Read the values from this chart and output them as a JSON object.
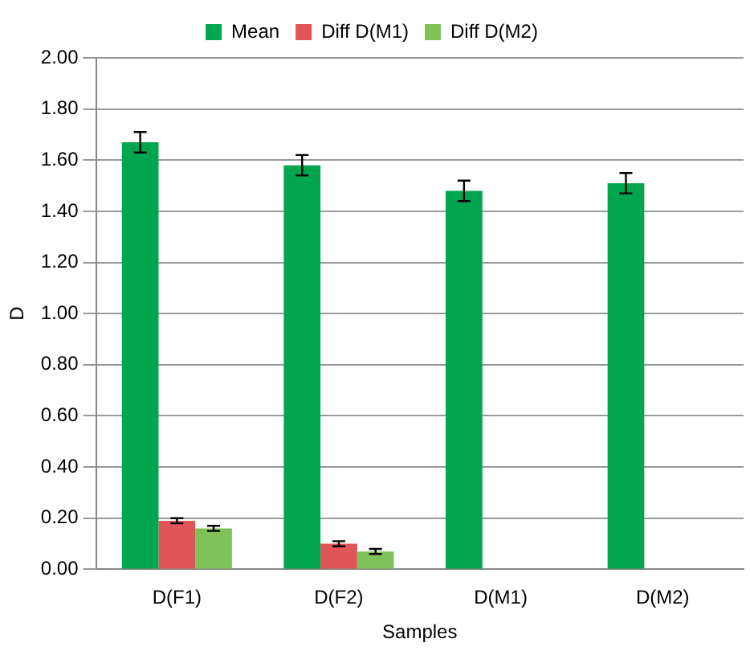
{
  "chart_data": {
    "type": "bar",
    "xlabel": "Samples",
    "ylabel": "D",
    "categories": [
      "D(F1)",
      "D(F2)",
      "D(M1)",
      "D(M2)"
    ],
    "series": [
      {
        "name": "Mean",
        "color": "#00a64f",
        "values": [
          1.67,
          1.58,
          1.48,
          1.51
        ],
        "errors": [
          0.04,
          0.04,
          0.04,
          0.04
        ]
      },
      {
        "name": "Diff D(M1)",
        "color": "#e05555",
        "values": [
          0.19,
          0.1,
          null,
          null
        ],
        "errors": [
          0.01,
          0.01,
          null,
          null
        ]
      },
      {
        "name": "Diff D(M2)",
        "color": "#80c25a",
        "values": [
          0.16,
          0.07,
          null,
          null
        ],
        "errors": [
          0.01,
          0.01,
          null,
          null
        ]
      }
    ],
    "ylim": [
      0,
      2
    ],
    "yticks": [
      {
        "value": 0,
        "label": "0.00"
      },
      {
        "value": 0.2,
        "label": "0.20"
      },
      {
        "value": 0.4,
        "label": "0.40"
      },
      {
        "value": 0.6,
        "label": "0.60"
      },
      {
        "value": 0.8,
        "label": "0.80"
      },
      {
        "value": 1,
        "label": "1.00"
      },
      {
        "value": 1.2,
        "label": "1.20"
      },
      {
        "value": 1.4,
        "label": "1.40"
      },
      {
        "value": 1.6,
        "label": "1.60"
      },
      {
        "value": 1.8,
        "label": "1.80"
      },
      {
        "value": 2,
        "label": "2.00"
      }
    ],
    "grid": "y",
    "legend": "top"
  }
}
